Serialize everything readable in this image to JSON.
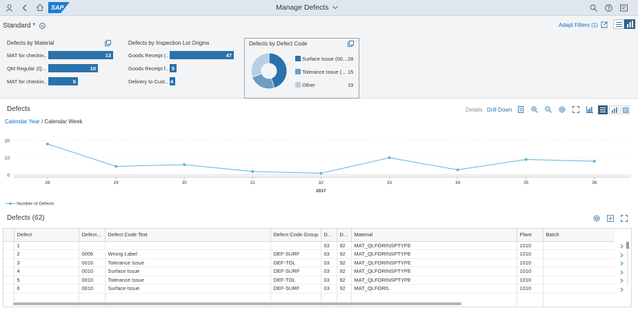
{
  "shell": {
    "app_title": "Manage Defects",
    "logo_text": "SAP"
  },
  "header": {
    "variant": "Standard *",
    "adapt_filters": "Adapt Filters (1)",
    "cards": {
      "material": {
        "title": "Defects by Material",
        "items": [
          {
            "label": "MAT for checkin...",
            "value": "13",
            "frac": 1.0
          },
          {
            "label": "QM Regular (Q...",
            "value": "10",
            "frac": 0.769
          },
          {
            "label": "MAT for checkin...",
            "value": "6",
            "frac": 0.46
          }
        ]
      },
      "origins": {
        "title": "Defects by Inspection Lot Origins",
        "items": [
          {
            "label": "Goods Receipt (...",
            "value": "47",
            "frac": 1.0
          },
          {
            "label": "Goods Receipt f...",
            "value": "5",
            "frac": 0.106
          },
          {
            "label": "Delivery to Cust...",
            "value": "4",
            "frac": 0.085
          }
        ]
      },
      "defcode": {
        "title": "Defects by Defect Code",
        "items": [
          {
            "label": "Surface Issue (00...",
            "value": "28",
            "color": "#2b72aa"
          },
          {
            "label": "Tolerance Issue (...",
            "value": "15",
            "color": "#6e9cc4"
          },
          {
            "label": "Other",
            "value": "19",
            "color": "#b7cfe4"
          }
        ]
      }
    }
  },
  "chart_section": {
    "title": "Defects",
    "details": "Details",
    "drill_down": "Drill Down",
    "breadcrumb_link": "Calendar Year",
    "breadcrumb_sep": "/",
    "breadcrumb_current": "Calendar Week",
    "legend": "Number of Defects"
  },
  "chart_data": {
    "type": "line",
    "x": [
      "28",
      "29",
      "30",
      "31",
      "32",
      "33",
      "34",
      "35",
      "36"
    ],
    "series": [
      {
        "name": "Number of Defects",
        "values": [
          18,
          5,
          6,
          2,
          1,
          10,
          3,
          9,
          8
        ],
        "color": "#5fb2d8"
      }
    ],
    "y_ticks": [
      "20",
      "10",
      "0"
    ],
    "ylim": [
      0,
      20
    ],
    "xgroup_label": "2017"
  },
  "table": {
    "title": "Defects (62)",
    "columns": [
      "Defect",
      "Defect...",
      "Defect Code Text",
      "Defect Code Group",
      "D...",
      "D...",
      "Material",
      "Plant",
      "Batch"
    ],
    "rows": [
      [
        "1",
        "",
        "",
        "",
        "03",
        "92",
        "MAT_QLFORINSPTYPE",
        "1010",
        ""
      ],
      [
        "2",
        "0006",
        "Wrong Label",
        "DEF-SURF",
        "03",
        "92",
        "MAT_QLFORINSPTYPE",
        "1010",
        ""
      ],
      [
        "3",
        "0010",
        "Tolerance Issue",
        "DEF-TOL",
        "03",
        "92",
        "MAT_QLFORINSPTYPE",
        "1010",
        ""
      ],
      [
        "4",
        "0010",
        "Surface Issue",
        "DEF-SURF",
        "03",
        "92",
        "MAT_QLFORINSPTYPE",
        "1010",
        ""
      ],
      [
        "5",
        "0010",
        "Tolerance Issue",
        "DEF-TOL",
        "03",
        "92",
        "MAT_QLFORINSPTYPE",
        "1010",
        ""
      ],
      [
        "6",
        "0010",
        "Surface Issue",
        "DEF-SURF",
        "03",
        "92",
        "MAT_QLFORIL",
        "1010",
        ""
      ]
    ]
  }
}
